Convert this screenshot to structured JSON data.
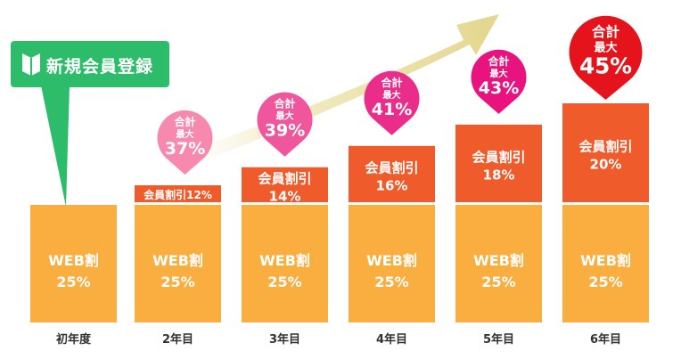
{
  "colors": {
    "base_bar": "#f9ae3f",
    "discount_bar": "#ef5b2a",
    "banner": "#2dbd6a",
    "arrow": "#e8dd9a",
    "pins": [
      "#f689ad",
      "#f0569b",
      "#ea2d8a",
      "#e8137f",
      "#e5131c"
    ]
  },
  "banner": {
    "label": "新規会員登録",
    "icon": "beginner-mark-icon"
  },
  "chart_data": {
    "type": "bar",
    "stacked": true,
    "categories": [
      "初年度",
      "2年目",
      "3年目",
      "4年目",
      "5年目",
      "6年目"
    ],
    "series": [
      {
        "name": "WEB割",
        "values": [
          25,
          25,
          25,
          25,
          25,
          25
        ],
        "labels": [
          "WEB割",
          "WEB割",
          "WEB割",
          "WEB割",
          "WEB割",
          "WEB割"
        ],
        "value_labels": [
          "25%",
          "25%",
          "25%",
          "25%",
          "25%",
          "25%"
        ]
      },
      {
        "name": "会員割引",
        "values": [
          0,
          12,
          14,
          16,
          18,
          20
        ],
        "labels": [
          "",
          "会員割引12%",
          "会員割引",
          "会員割引",
          "会員割引",
          "会員割引"
        ],
        "value_labels": [
          "",
          "",
          "14%",
          "16%",
          "18%",
          "20%"
        ]
      }
    ],
    "totals": {
      "line1": "合計",
      "line2": "最大",
      "values": [
        null,
        "37%",
        "39%",
        "41%",
        "43%",
        "45%"
      ]
    },
    "ylim": [
      0,
      50
    ],
    "grid": false,
    "legend": "none",
    "title": "",
    "xlabel": "",
    "ylabel": ""
  }
}
